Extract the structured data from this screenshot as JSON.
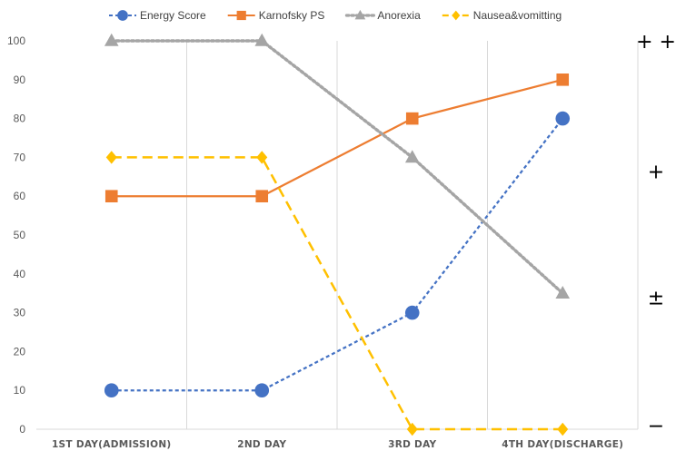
{
  "chart_data": {
    "type": "line",
    "categories": [
      "1ST DAY(ADMISSION)",
      "2ND DAY",
      "3RD DAY",
      "4TH DAY(DISCHARGE)"
    ],
    "ylim": [
      0,
      100
    ],
    "yticks": [
      0,
      10,
      20,
      30,
      40,
      50,
      60,
      70,
      80,
      90,
      100
    ],
    "grid": "vertical",
    "legend_position": "top",
    "right_axis_labels": [
      {
        "label": "+ +",
        "value": 100
      },
      {
        "label": "+",
        "value": 66.5
      },
      {
        "label": "±",
        "value": 34
      },
      {
        "label": "−",
        "value": 1
      }
    ],
    "series": [
      {
        "name": "Energy Score",
        "values": [
          10,
          10,
          30,
          80
        ],
        "color": "#4472C4",
        "dash": "short-dash",
        "marker": "circle"
      },
      {
        "name": "Karnofsky PS",
        "values": [
          60,
          60,
          80,
          90
        ],
        "color": "#ED7D31",
        "dash": "solid",
        "marker": "square"
      },
      {
        "name": "Anorexia",
        "values": [
          100,
          100,
          70,
          35
        ],
        "color": "#A5A5A5",
        "dash": "dotted",
        "marker": "triangle"
      },
      {
        "name": "Nausea&vomitting",
        "values": [
          70,
          70,
          0,
          0
        ],
        "color": "#FFC000",
        "dash": "long-dash",
        "marker": "diamond"
      }
    ]
  }
}
